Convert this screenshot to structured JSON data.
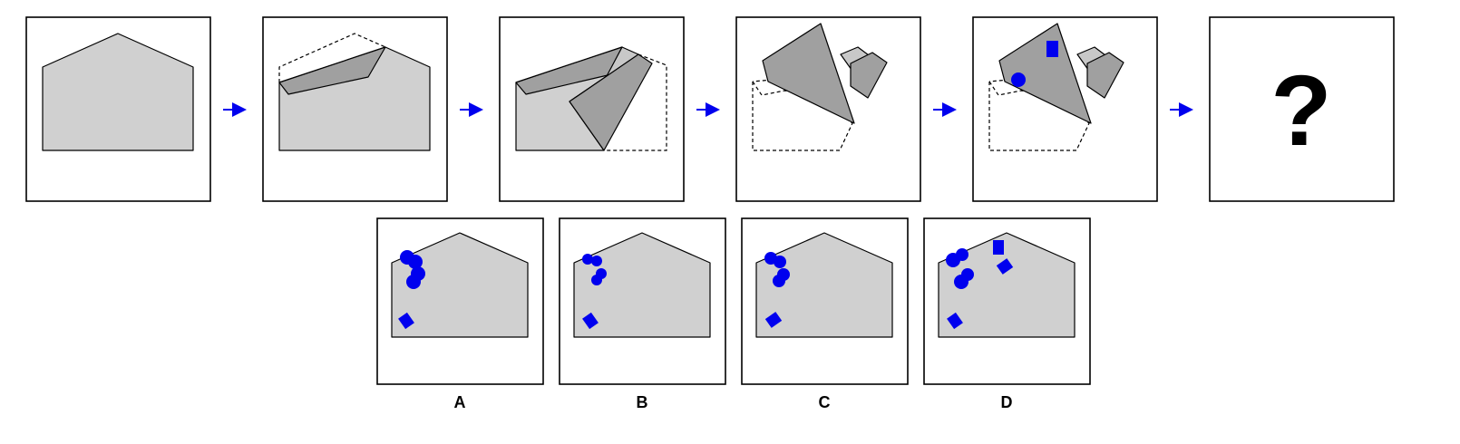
{
  "question_mark": "?",
  "options": [
    {
      "label": "A"
    },
    {
      "label": "B"
    },
    {
      "label": "C"
    },
    {
      "label": "D"
    }
  ],
  "colors": {
    "paper": "#d0d0d0",
    "folded_flap": "#a0a0a0",
    "punch_hole": "#0000ee",
    "arrow": "#0000ee"
  }
}
